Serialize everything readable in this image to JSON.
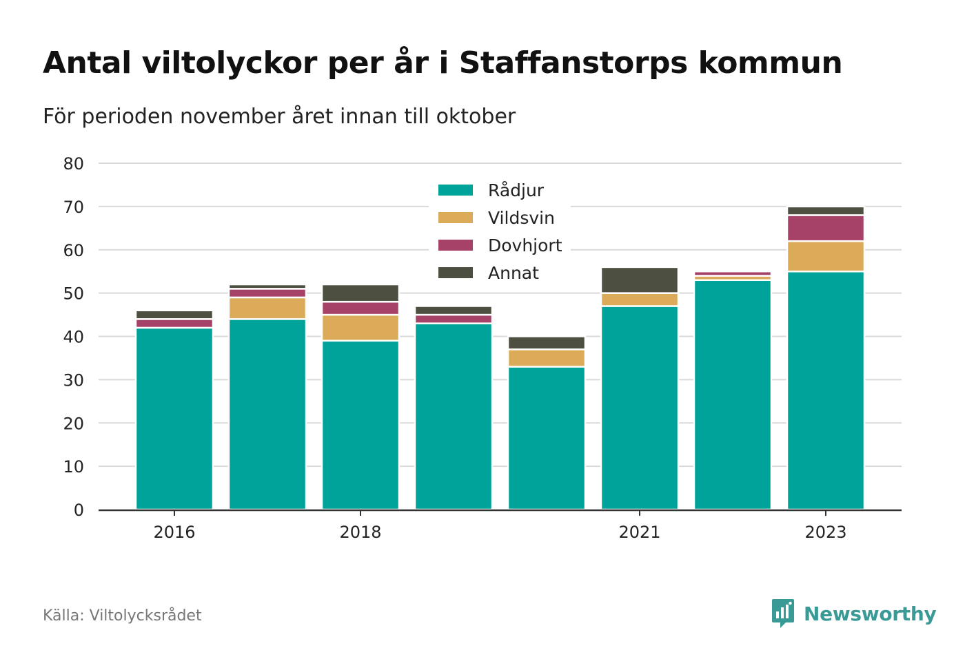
{
  "title": "Antal viltolyckor per år i Staffanstorps kommun",
  "subtitle": "För perioden november året innan till oktober",
  "source": "Källa: Viltolycksrådet",
  "brand": {
    "name": "Newsworthy",
    "icon": "newsworthy-logo-icon",
    "color": "#3a9a96"
  },
  "chart_data": {
    "type": "bar",
    "stacked": true,
    "categories": [
      "2016",
      "2017",
      "2018",
      "2019",
      "2020",
      "2021",
      "2022",
      "2023"
    ],
    "x_tick_labels": [
      "2016",
      "2018",
      "2021",
      "2023"
    ],
    "series": [
      {
        "name": "Rådjur",
        "color": "#00a39a",
        "values": [
          42,
          44,
          39,
          43,
          33,
          47,
          53,
          55
        ]
      },
      {
        "name": "Vildsvin",
        "color": "#dbab5a",
        "values": [
          0,
          5,
          6,
          0,
          4,
          3,
          1,
          7
        ]
      },
      {
        "name": "Dovhjort",
        "color": "#a64168",
        "values": [
          2,
          2,
          3,
          2,
          0,
          0,
          1,
          6
        ]
      },
      {
        "name": "Annat",
        "color": "#4d5040",
        "values": [
          2,
          1,
          4,
          2,
          3,
          6,
          0,
          2
        ]
      }
    ],
    "ylim": [
      0,
      80
    ],
    "yticks": [
      0,
      10,
      20,
      30,
      40,
      50,
      60,
      70,
      80
    ],
    "grid": true,
    "legend": "top-center",
    "xlabel": "",
    "ylabel": ""
  }
}
